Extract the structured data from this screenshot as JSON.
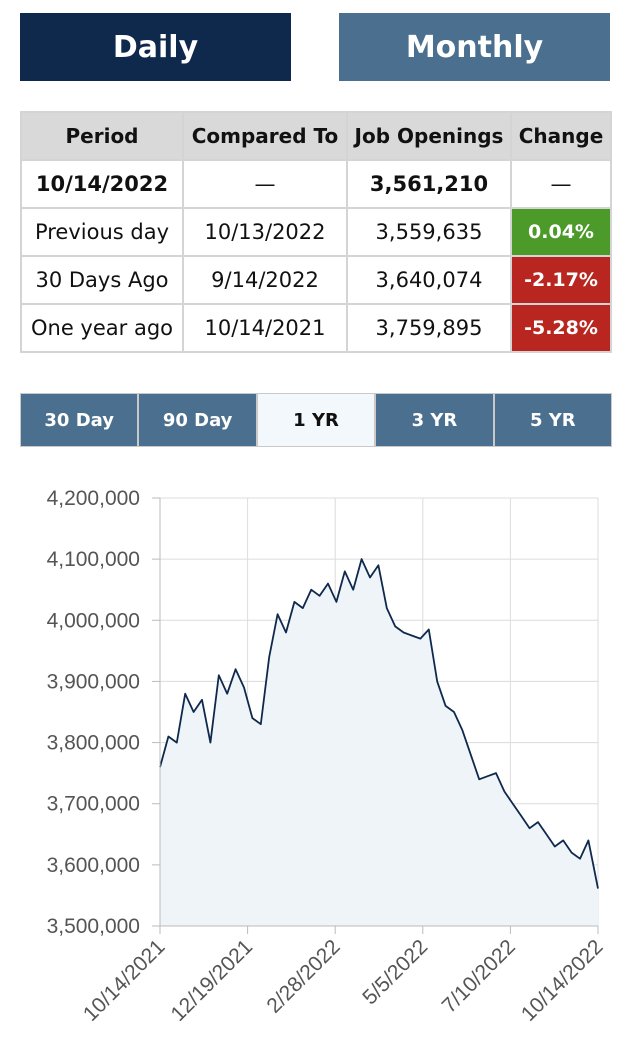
{
  "toggle": {
    "daily_label": "Daily",
    "monthly_label": "Monthly"
  },
  "colors": {
    "navy": "#0f294d",
    "steel": "#4b6f8e",
    "up": "#4c9a2a",
    "down": "#b8261f"
  },
  "table": {
    "headers": [
      "Period",
      "Compared To",
      "Job Openings",
      "Change"
    ],
    "rows": [
      {
        "period": "10/14/2022",
        "compared": "—",
        "openings": "3,561,210",
        "change": "—"
      },
      {
        "period": "Previous day",
        "compared": "10/13/2022",
        "openings": "3,559,635",
        "change": "0.04%"
      },
      {
        "period": "30 Days Ago",
        "compared": "9/14/2022",
        "openings": "3,640,074",
        "change": "-2.17%"
      },
      {
        "period": "One year ago",
        "compared": "10/14/2021",
        "openings": "3,759,895",
        "change": "-5.28%"
      }
    ]
  },
  "ranges": [
    "30 Day",
    "90 Day",
    "1 YR",
    "3 YR",
    "5 YR"
  ],
  "active_range": "1 YR",
  "chart_data": {
    "type": "area",
    "title": "",
    "xlabel": "",
    "ylabel": "",
    "ylim": [
      3500000,
      4200000
    ],
    "y_ticks": [
      "3,500,000",
      "3,600,000",
      "3,700,000",
      "3,800,000",
      "3,900,000",
      "4,000,000",
      "4,100,000",
      "4,200,000"
    ],
    "x_ticks": [
      "10/14/2021",
      "12/19/2021",
      "2/28/2022",
      "5/5/2022",
      "7/10/2022",
      "10/14/2022"
    ],
    "grid": true,
    "line_color": "#0f294d",
    "fill_color": "#eef4f8",
    "series": [
      {
        "x": [
          "2021-10-14",
          "2021-10-21",
          "2021-10-28",
          "2021-11-04",
          "2021-11-11",
          "2021-11-18",
          "2021-11-25",
          "2021-12-02",
          "2021-12-09",
          "2021-12-16",
          "2021-12-23",
          "2021-12-30",
          "2022-01-06",
          "2022-01-13",
          "2022-01-20",
          "2022-01-27",
          "2022-02-03",
          "2022-02-10",
          "2022-02-17",
          "2022-02-24",
          "2022-03-03",
          "2022-03-10",
          "2022-03-17",
          "2022-03-24",
          "2022-03-31",
          "2022-04-07",
          "2022-04-14",
          "2022-04-21",
          "2022-04-28",
          "2022-05-05",
          "2022-05-12",
          "2022-05-19",
          "2022-05-26",
          "2022-06-02",
          "2022-06-09",
          "2022-06-16",
          "2022-06-23",
          "2022-06-30",
          "2022-07-07",
          "2022-07-14",
          "2022-07-21",
          "2022-07-28",
          "2022-08-04",
          "2022-08-11",
          "2022-08-18",
          "2022-08-25",
          "2022-09-01",
          "2022-09-08",
          "2022-09-15",
          "2022-09-22",
          "2022-09-29",
          "2022-10-06",
          "2022-10-14"
        ],
        "values": [
          3759895,
          3810000,
          3800000,
          3880000,
          3850000,
          3870000,
          3800000,
          3910000,
          3880000,
          3920000,
          3890000,
          3840000,
          3830000,
          3940000,
          4010000,
          3980000,
          4030000,
          4020000,
          4050000,
          4040000,
          4060000,
          4030000,
          4080000,
          4050000,
          4100000,
          4070000,
          4090000,
          4020000,
          3990000,
          3980000,
          3975000,
          3970000,
          3985000,
          3900000,
          3860000,
          3850000,
          3820000,
          3780000,
          3740000,
          3745000,
          3750000,
          3720000,
          3700000,
          3680000,
          3660000,
          3670000,
          3650000,
          3630000,
          3640074,
          3620000,
          3610000,
          3640000,
          3561210
        ]
      }
    ]
  }
}
